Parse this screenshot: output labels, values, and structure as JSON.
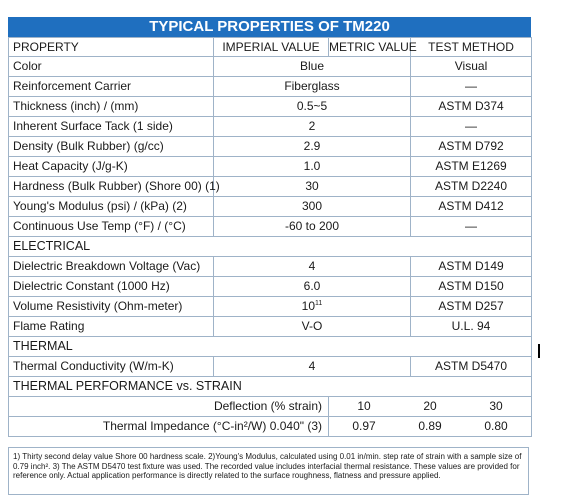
{
  "title": "TYPICAL PROPERTIES OF TM220",
  "header": {
    "property": "PROPERTY",
    "imperial": "IMPERIAL VALUE",
    "metric": "METRIC VALUE",
    "method": "TEST METHOD"
  },
  "rows": [
    {
      "kind": "row",
      "property": "Color",
      "value": "Blue",
      "method": "Visual"
    },
    {
      "kind": "row",
      "property": "Reinforcement Carrier",
      "value": "Fiberglass",
      "method": "—"
    },
    {
      "kind": "row",
      "property": "Thickness (inch) / (mm)",
      "value": "0.5~5",
      "method": "ASTM D374"
    },
    {
      "kind": "row",
      "property": "Inherent Surface Tack (1 side)",
      "value": "2",
      "method": "—"
    },
    {
      "kind": "row",
      "property": "Density (Bulk Rubber) (g/cc)",
      "value": "2.9",
      "method": "ASTM D792"
    },
    {
      "kind": "row",
      "property": "Heat Capacity (J/g-K)",
      "value": "1.0",
      "method": "ASTM E1269"
    },
    {
      "kind": "row",
      "property": "Hardness (Bulk Rubber) (Shore 00) (1)",
      "value": "30",
      "method": "ASTM D2240"
    },
    {
      "kind": "row",
      "property": "Young's Modulus (psi) / (kPa) (2)",
      "value": "300",
      "method": "ASTM D412"
    },
    {
      "kind": "row",
      "property": "Continuous Use Temp (°F) / (°C)",
      "value": "-60 to 200",
      "method": "—"
    },
    {
      "kind": "section",
      "property": "ELECTRICAL"
    },
    {
      "kind": "row",
      "property": "Dielectric Breakdown Voltage (Vac)",
      "value": "4",
      "method": "ASTM D149"
    },
    {
      "kind": "row",
      "property": "Dielectric Constant (1000 Hz)",
      "value": "6.0",
      "method": "ASTM D150"
    },
    {
      "kind": "row",
      "property": "Volume Resistivity (Ohm-meter)",
      "value": "10",
      "value_sup": "11",
      "method": "ASTM D257"
    },
    {
      "kind": "row",
      "property": "Flame Rating",
      "value": "V-O",
      "method": "U.L. 94"
    },
    {
      "kind": "section",
      "property": "THERMAL"
    },
    {
      "kind": "row",
      "property": "Thermal Conductivity (W/m-K)",
      "value": "4",
      "method": "ASTM D5470"
    },
    {
      "kind": "section",
      "property": "THERMAL PERFORMANCE vs. STRAIN"
    }
  ],
  "strain": {
    "deflection_label": "Deflection (% strain)",
    "deflection": [
      "10",
      "20",
      "30"
    ],
    "impedance_label": "Thermal Impedance (°C-in²/W) 0.040\" (3)",
    "impedance": [
      "0.97",
      "0.89",
      "0.80"
    ]
  },
  "footnotes": "1) Thirty second delay value Shore 00 hardness scale. 2)Young's Modulus, calculated using 0.01 in/min. step rate of strain with a sample size of 0.79 inch². 3) The ASTM D5470 test fixture was used. The recorded value includes interfacial thermal resistance. These values are provided for reference only. Actual application performance is directly related to the surface roughness, flatness and pressure applied."
}
